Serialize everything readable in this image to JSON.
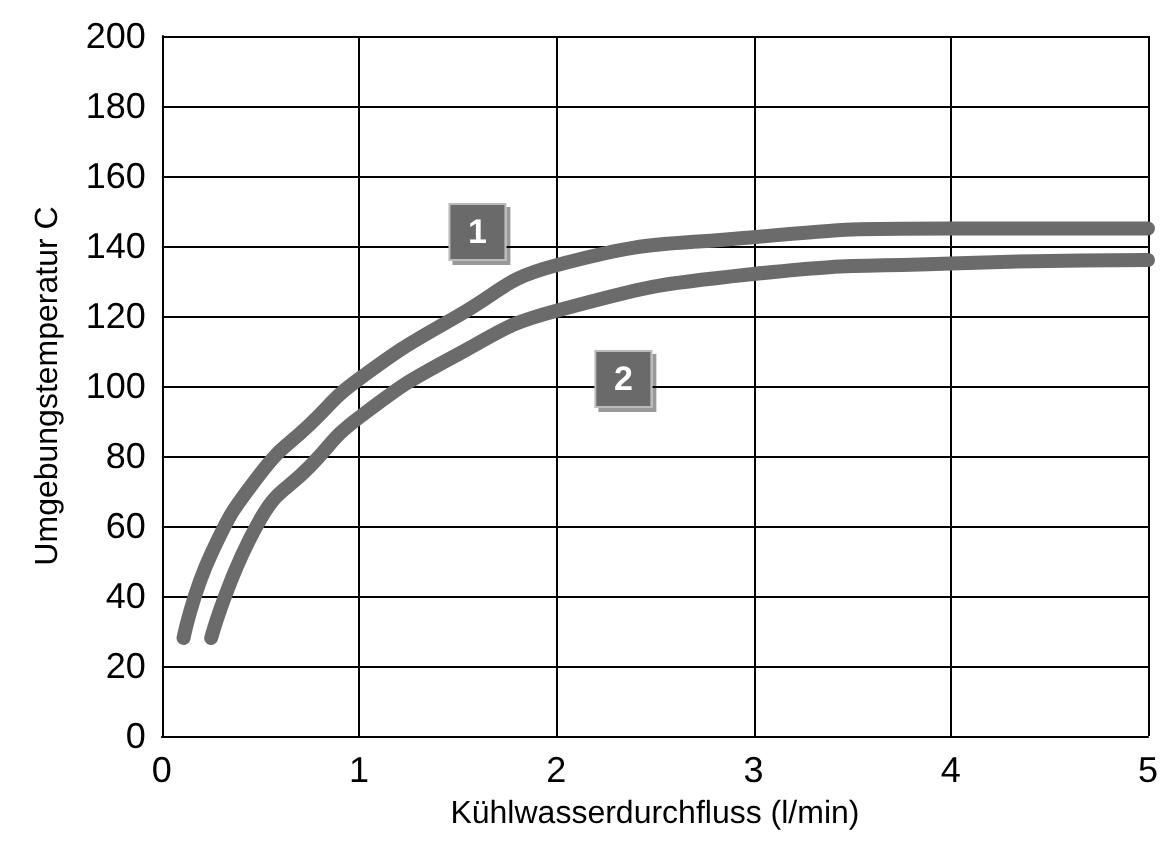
{
  "chart_data": {
    "type": "line",
    "xlabel": "Kühlwasserdurchfluss (l/min)",
    "ylabel": "Umgebungstemperatur C",
    "xlim": [
      0,
      5
    ],
    "xticks": [
      0,
      1,
      2,
      3,
      4,
      5
    ],
    "ylim": [
      0,
      200
    ],
    "yticks": [
      0,
      20,
      40,
      60,
      80,
      100,
      120,
      140,
      160,
      180,
      200
    ],
    "grid": true,
    "line_style": "solid",
    "series": [
      {
        "color": "#6b6b6b",
        "x": [
          0.11,
          0.25,
          0.5,
          0.75,
          1,
          1.5,
          2,
          3,
          4,
          5
        ],
        "values": [
          28,
          52,
          75,
          89,
          102,
          120,
          134.5,
          142.5,
          145,
          145
        ]
      },
      {
        "color": "#6b6b6b",
        "x": [
          0.25,
          0.5,
          0.75,
          1,
          1.5,
          2,
          3,
          4,
          5
        ],
        "values": [
          28,
          62,
          77,
          91,
          109,
          121.5,
          132,
          135,
          136
        ]
      }
    ],
    "annotations": [
      {
        "text": "1",
        "x": 1.6,
        "y": 144
      },
      {
        "text": "2",
        "x": 2.34,
        "y": 102
      }
    ]
  }
}
